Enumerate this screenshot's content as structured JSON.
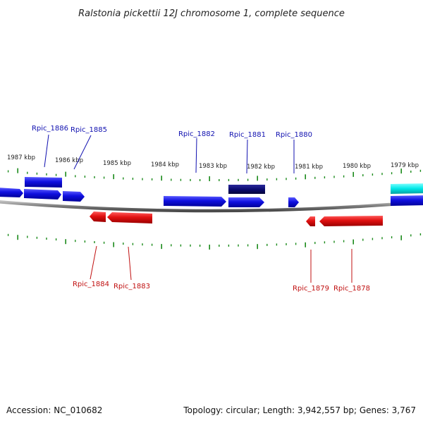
{
  "title": "Ralstonia pickettii 12J chromosome 1, complete sequence",
  "footer": {
    "accession": "Accession: NC_010682",
    "summary": "Topology: circular; Length: 3,942,557 bp; Genes: 3,767"
  },
  "colors": {
    "tick": "#1a8a1a",
    "backbone": "#888888",
    "forward_gene": "#1010e0",
    "reverse_gene": "#e01010",
    "selected_gene": "#0a0a70",
    "rna_gene": "#00e0e0",
    "forward_label": "#1010b0",
    "reverse_label": "#c01010"
  },
  "scale_labels": [
    "1987 kbp",
    "1986 kbp",
    "1985 kbp",
    "1984 kbp",
    "1983 kbp",
    "1982 kbp",
    "1981 kbp",
    "1980 kbp",
    "1979 kbp"
  ],
  "gene_labels": {
    "forward": [
      "Rpic_1886",
      "Rpic_1885",
      "Rpic_1882",
      "Rpic_1881",
      "Rpic_1880"
    ],
    "reverse": [
      "Rpic_1884",
      "Rpic_1883",
      "Rpic_1879",
      "Rpic_1878"
    ]
  }
}
